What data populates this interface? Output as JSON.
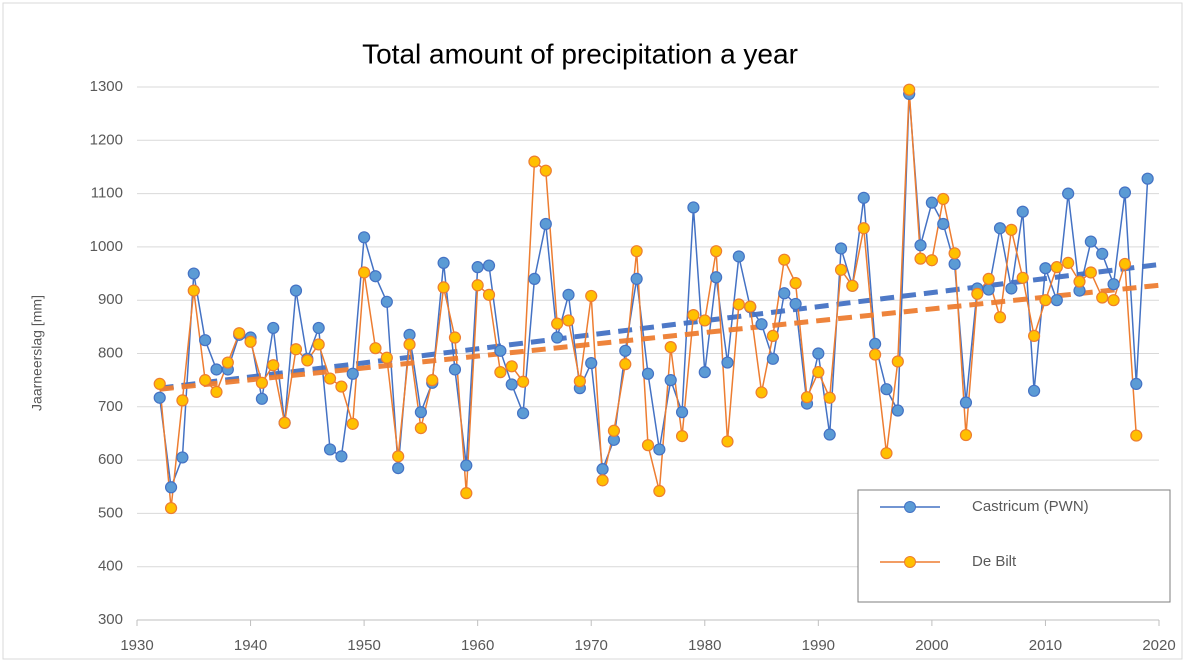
{
  "chart_data": {
    "type": "line",
    "title": "Total amount of precipitation a year",
    "y_label": "Jaarneerslag [mm]",
    "x": [
      1932,
      1933,
      1934,
      1935,
      1936,
      1937,
      1938,
      1939,
      1940,
      1941,
      1942,
      1943,
      1944,
      1945,
      1946,
      1947,
      1948,
      1949,
      1950,
      1951,
      1952,
      1953,
      1954,
      1955,
      1956,
      1957,
      1958,
      1959,
      1960,
      1961,
      1962,
      1963,
      1964,
      1965,
      1966,
      1967,
      1968,
      1969,
      1970,
      1971,
      1972,
      1973,
      1974,
      1975,
      1976,
      1977,
      1978,
      1979,
      1980,
      1981,
      1982,
      1983,
      1984,
      1985,
      1986,
      1987,
      1988,
      1989,
      1990,
      1991,
      1992,
      1993,
      1994,
      1995,
      1996,
      1997,
      1998,
      1999,
      2000,
      2001,
      2002,
      2003,
      2004,
      2005,
      2006,
      2007,
      2008,
      2009,
      2010,
      2011,
      2012,
      2013,
      2014,
      2015,
      2016,
      2017,
      2018,
      2019
    ],
    "series": [
      {
        "name": "Castricum (PWN)",
        "color": "#4472c4",
        "marker_color": "#5b9bd5",
        "values": [
          717,
          549,
          605,
          950,
          825,
          770,
          770,
          835,
          830,
          715,
          848,
          670,
          918,
          790,
          848,
          620,
          607,
          762,
          1018,
          945,
          897,
          585,
          835,
          690,
          745,
          970,
          770,
          590,
          962,
          965,
          805,
          742,
          688,
          940,
          1043,
          830,
          910,
          735,
          782,
          583,
          638,
          805,
          940,
          762,
          620,
          750,
          690,
          1074,
          765,
          943,
          783,
          982,
          887,
          855,
          790,
          913,
          893,
          706,
          800,
          648,
          997,
          927,
          1092,
          818,
          733,
          693,
          1287,
          1003,
          1083,
          1043,
          968,
          708,
          922,
          920,
          1035,
          922,
          1066,
          730,
          960,
          900,
          1100,
          918,
          1010,
          987,
          930,
          1102,
          743,
          1128
        ],
        "trend": {
          "x": [
            1932,
            2020
          ],
          "values": [
            735,
            967
          ]
        }
      },
      {
        "name": "De Bilt",
        "color": "#ed7d31",
        "marker_color": "#ffc000",
        "values": [
          743,
          510,
          712,
          918,
          750,
          728,
          783,
          838,
          822,
          745,
          778,
          670,
          808,
          787,
          817,
          753,
          738,
          668,
          952,
          810,
          792,
          607,
          817,
          660,
          750,
          924,
          830,
          538,
          928,
          910,
          765,
          776,
          747,
          1160,
          1143,
          856,
          862,
          748,
          908,
          562,
          655,
          780,
          992,
          628,
          542,
          812,
          645,
          872,
          862,
          992,
          635,
          892,
          888,
          727,
          833,
          976,
          932,
          718,
          765,
          717,
          957,
          927,
          1035,
          798,
          613,
          785,
          1295,
          978,
          975,
          1090,
          988,
          647,
          912,
          940,
          868,
          1032,
          942,
          833,
          900,
          962,
          970,
          935,
          952,
          905,
          900,
          968,
          646,
          null
        ],
        "trend": {
          "x": [
            1932,
            2020
          ],
          "values": [
            733,
            928
          ]
        }
      }
    ],
    "xlim": [
      1930,
      2020
    ],
    "xticks": [
      1930,
      1940,
      1950,
      1960,
      1970,
      1980,
      1990,
      2000,
      2010,
      2020
    ],
    "ylim": [
      300,
      1300
    ],
    "yticks": [
      300,
      400,
      500,
      600,
      700,
      800,
      900,
      1000,
      1100,
      1200,
      1300
    ],
    "grid": true,
    "legend": "lower right"
  }
}
